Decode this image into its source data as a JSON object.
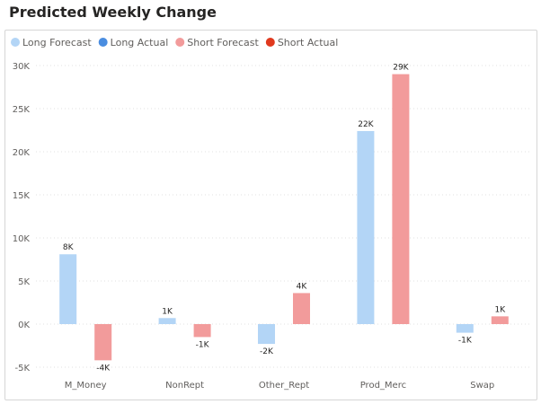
{
  "chart_data": {
    "type": "bar",
    "title": "Predicted Weekly Change",
    "categories": [
      "M_Money",
      "NonRept",
      "Other_Rept",
      "Prod_Merc",
      "Swap"
    ],
    "legend": [
      {
        "name": "Long Forecast",
        "color": "#b3d5f6"
      },
      {
        "name": "Long Actual",
        "color": "#4a8de0"
      },
      {
        "name": "Short Forecast",
        "color": "#f29b9b"
      },
      {
        "name": "Short Actual",
        "color": "#e0391e"
      }
    ],
    "series": [
      {
        "name": "Long Forecast",
        "color": "#b3d5f6",
        "values": [
          8100,
          700,
          -2300,
          22400,
          -1000
        ],
        "labels": [
          "8K",
          "1K",
          "-2K",
          "22K",
          "-1K"
        ]
      },
      {
        "name": "Short Forecast",
        "color": "#f29b9b",
        "values": [
          -4200,
          -1500,
          3600,
          29000,
          900
        ],
        "labels": [
          "-4K",
          "-1K",
          "4K",
          "29K",
          "1K"
        ]
      }
    ],
    "yticks": [
      -5000,
      0,
      5000,
      10000,
      15000,
      20000,
      25000,
      30000
    ],
    "ytick_labels": [
      "-5K",
      "0K",
      "5K",
      "10K",
      "15K",
      "20K",
      "25K",
      "30K"
    ],
    "ylim": [
      -5000,
      30000
    ],
    "grid": true,
    "legend_position": "top-left"
  }
}
